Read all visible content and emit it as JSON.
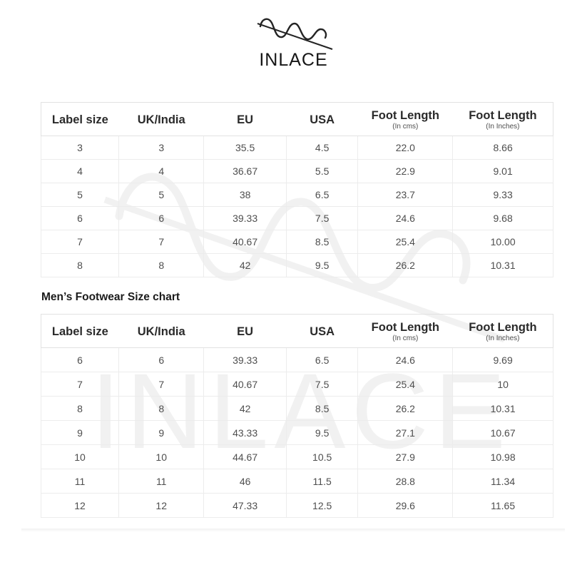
{
  "brand": {
    "name": "INLACE"
  },
  "colors": {
    "background": "#ffffff",
    "header_text": "#2a2a2a",
    "cell_text": "#4e4e4e",
    "table_border": "#e2e2e2",
    "title_text": "#1b1b1b"
  },
  "tables": [
    {
      "name": "womens-size-chart",
      "title": "",
      "headers": [
        {
          "label": "Label size",
          "sub": ""
        },
        {
          "label": "UK/India",
          "sub": ""
        },
        {
          "label": "EU",
          "sub": ""
        },
        {
          "label": "USA",
          "sub": ""
        },
        {
          "label": "Foot Length",
          "sub": "(In cms)"
        },
        {
          "label": "Foot Length",
          "sub": "(In Inches)"
        }
      ],
      "rows": [
        [
          "3",
          "3",
          "35.5",
          "4.5",
          "22.0",
          "8.66"
        ],
        [
          "4",
          "4",
          "36.67",
          "5.5",
          "22.9",
          "9.01"
        ],
        [
          "5",
          "5",
          "38",
          "6.5",
          "23.7",
          "9.33"
        ],
        [
          "6",
          "6",
          "39.33",
          "7.5",
          "24.6",
          "9.68"
        ],
        [
          "7",
          "7",
          "40.67",
          "8.5",
          "25.4",
          "10.00"
        ],
        [
          "8",
          "8",
          "42",
          "9.5",
          "26.2",
          "10.31"
        ]
      ]
    },
    {
      "name": "mens-size-chart",
      "title": "Men’s Footwear Size chart",
      "headers": [
        {
          "label": "Label size",
          "sub": ""
        },
        {
          "label": "UK/India",
          "sub": ""
        },
        {
          "label": "EU",
          "sub": ""
        },
        {
          "label": "USA",
          "sub": ""
        },
        {
          "label": "Foot Length",
          "sub": "(In cms)"
        },
        {
          "label": "Foot Length",
          "sub": "(In Inches)"
        }
      ],
      "rows": [
        [
          "6",
          "6",
          "39.33",
          "6.5",
          "24.6",
          "9.69"
        ],
        [
          "7",
          "7",
          "40.67",
          "7.5",
          "25.4",
          "10"
        ],
        [
          "8",
          "8",
          "42",
          "8.5",
          "26.2",
          "10.31"
        ],
        [
          "9",
          "9",
          "43.33",
          "9.5",
          "27.1",
          "10.67"
        ],
        [
          "10",
          "10",
          "44.67",
          "10.5",
          "27.9",
          "10.98"
        ],
        [
          "11",
          "11",
          "46",
          "11.5",
          "28.8",
          "11.34"
        ],
        [
          "12",
          "12",
          "47.33",
          "12.5",
          "29.6",
          "11.65"
        ]
      ]
    }
  ]
}
